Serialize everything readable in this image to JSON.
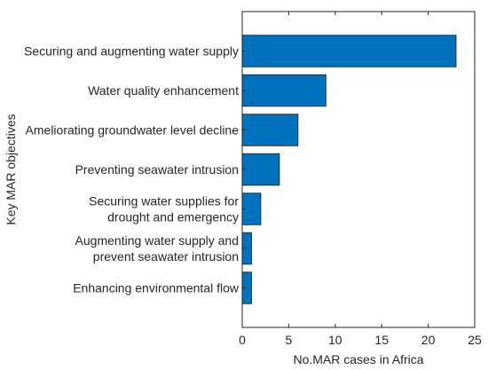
{
  "chart_data": {
    "type": "bar",
    "orientation": "horizontal",
    "title": "",
    "xlabel": "No.MAR cases in Africa",
    "ylabel": "Key MAR objectives",
    "categories": [
      [
        "Securing and augmenting water supply"
      ],
      [
        "Water quality enhancement"
      ],
      [
        "Ameliorating groundwater level decline"
      ],
      [
        "Preventing seawater intrusion"
      ],
      [
        "Securing water supplies for",
        "drought and emergency"
      ],
      [
        "Augmenting water supply and",
        "prevent seawater intrusion"
      ],
      [
        "Enhancing environmental flow"
      ]
    ],
    "values": [
      23,
      9,
      6,
      4,
      2,
      1,
      1
    ],
    "xlim": [
      0,
      25
    ],
    "xticks": [
      "0",
      "5",
      "10",
      "15",
      "20",
      "25"
    ],
    "grid": false,
    "legend": "none",
    "bar_color": "#0072BD",
    "bar_edge_color": "#1a1a1a"
  }
}
